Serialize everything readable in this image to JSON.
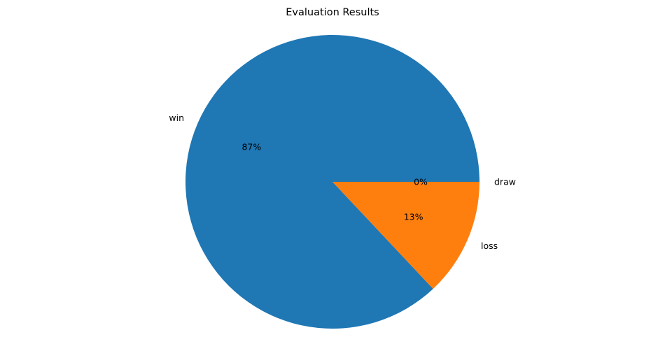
{
  "chart_data": {
    "type": "pie",
    "title": "Evaluation Results",
    "slices": [
      {
        "label": "win",
        "value": 87,
        "display": "87%",
        "color": "#1f77b4"
      },
      {
        "label": "loss",
        "value": 13,
        "display": "13%",
        "color": "#ff7f0e"
      },
      {
        "label": "draw",
        "value": 0,
        "display": "0%",
        "color": "#2ca02c"
      }
    ],
    "start_angle_deg": 0,
    "direction": "counterclockwise",
    "legend": "none"
  }
}
